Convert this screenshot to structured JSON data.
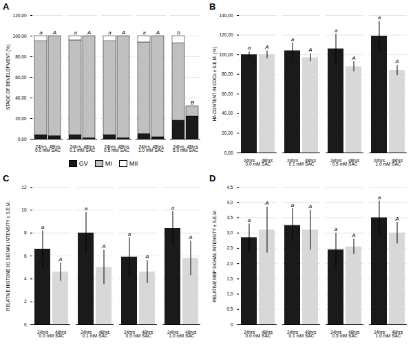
{
  "chart_data": [
    {
      "type": "bar",
      "stacked": true,
      "title": "A",
      "ylabel": "STAGE OF DEVELOPMENT (%)",
      "categories": [
        "0.0 mM SAC",
        "0.1 mM SAC",
        "0.5 mM SAC",
        "1.0 mM SAC",
        "5.0 mM SAC"
      ],
      "subcategories": [
        "24hrs",
        "48hrs"
      ],
      "series": [
        {
          "name": "GV",
          "color": "#1a1a1a",
          "values": [
            [
              4,
              3
            ],
            [
              4,
              1
            ],
            [
              4,
              1
            ],
            [
              5,
              2
            ],
            [
              18,
              22
            ]
          ]
        },
        {
          "name": "MI",
          "color": "#c0c0c0",
          "values": [
            [
              91,
              97
            ],
            [
              92,
              99
            ],
            [
              91,
              99
            ],
            [
              89,
              98
            ],
            [
              75,
              10
            ]
          ]
        },
        {
          "name": "MII",
          "color": "#ffffff",
          "values": [
            [
              5,
              0
            ],
            [
              4,
              0
            ],
            [
              5,
              0
            ],
            [
              6,
              0
            ],
            [
              7,
              0
            ]
          ]
        }
      ],
      "annotations": [
        [
          "a",
          "A"
        ],
        [
          "a",
          "A"
        ],
        [
          "a",
          "A"
        ],
        [
          "a",
          "A"
        ],
        [
          "b",
          "B"
        ]
      ],
      "ylim": [
        0,
        120
      ],
      "yticks": [
        {
          "value": 0,
          "label": "0,00"
        },
        {
          "value": 20,
          "label": "20,00"
        },
        {
          "value": 40,
          "label": "40,00"
        },
        {
          "value": 60,
          "label": "60,00"
        },
        {
          "value": 80,
          "label": "80,00"
        },
        {
          "value": 100,
          "label": "100,00"
        },
        {
          "value": 120,
          "label": "120,00"
        }
      ],
      "grid": true,
      "legend": "bottom"
    },
    {
      "type": "bar",
      "title": "B",
      "ylabel": "HA CONTENT IN COCs ± S.E.M. (%)",
      "categories": [
        "0.0 mM SAC",
        "0.1 mM SAC",
        "0.5 mM SAC",
        "1.0 mM SAC"
      ],
      "series": [
        {
          "name": "24hrs",
          "color": "#1a1a1a",
          "values": [
            100,
            104,
            106,
            119
          ],
          "errors": [
            3,
            8,
            15,
            15
          ],
          "annotations": [
            "a",
            "a",
            "a",
            "a"
          ]
        },
        {
          "name": "48hrs",
          "color": "#d8d8d8",
          "values": [
            100,
            97,
            88,
            84
          ],
          "errors": [
            4,
            4,
            5,
            5
          ],
          "annotations": [
            "A",
            "A",
            "A",
            "A"
          ]
        }
      ],
      "ylim": [
        0,
        140
      ],
      "yticks": [
        {
          "value": 0,
          "label": "0,00"
        },
        {
          "value": 20,
          "label": "20,00"
        },
        {
          "value": 40,
          "label": "40,00"
        },
        {
          "value": 60,
          "label": "60,00"
        },
        {
          "value": 80,
          "label": "80,00"
        },
        {
          "value": 100,
          "label": "100,00"
        },
        {
          "value": 120,
          "label": "120,00"
        },
        {
          "value": 140,
          "label": "140,00"
        }
      ],
      "grid": true
    },
    {
      "type": "bar",
      "title": "C",
      "ylabel": "RELATIVE HISTONE H1 SIGNAL INTENSITY ± S.E.M.",
      "categories": [
        "0.0 mM SAC",
        "0.1 mM SAC",
        "0.5 mM SAC",
        "1.0 mM SAC"
      ],
      "series": [
        {
          "name": "24hrs",
          "color": "#1a1a1a",
          "values": [
            6.6,
            8.0,
            5.9,
            8.4
          ],
          "errors": [
            1.6,
            1.8,
            1.7,
            1.5
          ],
          "annotations": [
            "a",
            "a",
            "a",
            "a"
          ]
        },
        {
          "name": "48hrs",
          "color": "#d8d8d8",
          "values": [
            4.6,
            5.0,
            4.6,
            5.8
          ],
          "errors": [
            0.8,
            1.5,
            1.0,
            1.5
          ],
          "annotations": [
            "A",
            "A",
            "A",
            "A"
          ]
        }
      ],
      "ylim": [
        0,
        12
      ],
      "yticks": [
        0,
        2,
        4,
        6,
        8,
        10,
        12
      ],
      "grid": true
    },
    {
      "type": "bar",
      "title": "D",
      "ylabel": "RELATIVE MBP SIGNAL INTENSITY ± S.E.M.",
      "categories": [
        "0.0 mM SAC",
        "0.1 mM SAC",
        "0.5 mM SAC",
        "1.0 mM SAC"
      ],
      "series": [
        {
          "name": "24hrs",
          "color": "#1a1a1a",
          "values": [
            2.85,
            3.25,
            2.45,
            3.5
          ],
          "errors": [
            0.45,
            0.55,
            0.55,
            0.55
          ],
          "annotations": [
            "a",
            "a",
            "a",
            "a"
          ]
        },
        {
          "name": "48hrs",
          "color": "#d8d8d8",
          "values": [
            3.1,
            3.1,
            2.55,
            3.0
          ],
          "errors": [
            0.75,
            0.65,
            0.25,
            0.35
          ],
          "annotations": [
            "A",
            "A",
            "A",
            "A"
          ]
        }
      ],
      "ylim": [
        0,
        4.5
      ],
      "yticks": [
        0,
        {
          "value": 0.5,
          "label": "0,5"
        },
        {
          "value": 1.0,
          "label": "1,0"
        },
        {
          "value": 1.5,
          "label": "1,5"
        },
        {
          "value": 2.0,
          "label": "2,0"
        },
        {
          "value": 2.5,
          "label": "2,5"
        },
        {
          "value": 3.0,
          "label": "3,0"
        },
        {
          "value": 3.5,
          "label": "3,5"
        },
        {
          "value": 4.0,
          "label": "4,0"
        },
        {
          "value": 4.5,
          "label": "4,5"
        }
      ],
      "grid": true
    }
  ]
}
